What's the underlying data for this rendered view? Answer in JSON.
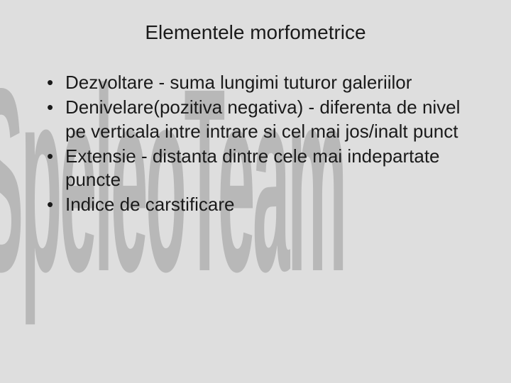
{
  "slide": {
    "background_color": "#dedede",
    "text_color": "#1a1a1a",
    "title": "Elementele morfometrice",
    "title_fontsize": 28,
    "bullet_fontsize": 26,
    "bullets": [
      "Dezvoltare - suma lungimi tuturor galeriilor",
      "Denivelare(pozitiva negativa) - diferenta de nivel pe verticala intre intrare si cel mai jos/inalt punct",
      "Extensie - distanta dintre cele mai indepartate puncte",
      "Indice de carstificare"
    ],
    "watermark": {
      "text": "SpeleoTeam",
      "color": "#b8b8b8",
      "font_weight": 700
    }
  }
}
